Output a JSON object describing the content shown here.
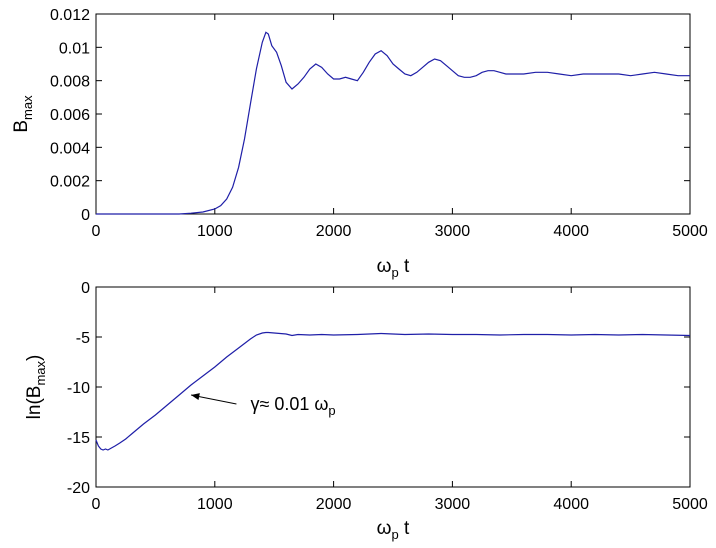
{
  "chart_data": [
    {
      "type": "line",
      "xlabel": "ω_p t",
      "ylabel": "B_max",
      "xlim": [
        0,
        5000
      ],
      "ylim": [
        0,
        0.012
      ],
      "xticks": [
        0,
        1000,
        2000,
        3000,
        4000,
        5000
      ],
      "xtick_labels": [
        "0",
        "1000",
        "2000",
        "3000",
        "4000",
        "5000"
      ],
      "yticks": [
        0,
        0.002,
        0.004,
        0.006,
        0.008,
        0.01,
        0.012
      ],
      "ytick_labels": [
        "0",
        "0.002",
        "0.004",
        "0.006",
        "0.008",
        "0.01",
        "0.012"
      ],
      "grid": false,
      "series": [
        {
          "color": "#1f1fa8",
          "x": [
            0,
            400,
            700,
            800,
            900,
            1000,
            1050,
            1100,
            1150,
            1200,
            1250,
            1300,
            1350,
            1400,
            1430,
            1450,
            1480,
            1520,
            1560,
            1600,
            1650,
            1700,
            1750,
            1800,
            1850,
            1900,
            1950,
            2000,
            2050,
            2100,
            2150,
            2200,
            2250,
            2300,
            2350,
            2400,
            2450,
            2500,
            2550,
            2600,
            2650,
            2700,
            2750,
            2800,
            2850,
            2900,
            2950,
            3000,
            3050,
            3100,
            3150,
            3200,
            3250,
            3300,
            3350,
            3400,
            3450,
            3500,
            3600,
            3700,
            3800,
            3900,
            4000,
            4100,
            4200,
            4300,
            4400,
            4500,
            4600,
            4700,
            4800,
            4900,
            5000
          ],
          "y": [
            0,
            0,
            0,
            5e-05,
            0.00012,
            0.0003,
            0.0005,
            0.0009,
            0.0016,
            0.0028,
            0.0045,
            0.0066,
            0.0087,
            0.0103,
            0.0109,
            0.0108,
            0.0101,
            0.0097,
            0.0089,
            0.0079,
            0.0075,
            0.0078,
            0.0082,
            0.0087,
            0.009,
            0.0088,
            0.0084,
            0.0081,
            0.0081,
            0.0082,
            0.0081,
            0.008,
            0.0085,
            0.0091,
            0.0096,
            0.0098,
            0.0095,
            0.009,
            0.0087,
            0.0084,
            0.0083,
            0.0085,
            0.0088,
            0.0091,
            0.0093,
            0.0092,
            0.0089,
            0.0086,
            0.0083,
            0.0082,
            0.0082,
            0.0083,
            0.0085,
            0.0086,
            0.0086,
            0.0085,
            0.0084,
            0.0084,
            0.0084,
            0.0085,
            0.0085,
            0.0084,
            0.0083,
            0.0084,
            0.0084,
            0.0084,
            0.0084,
            0.0083,
            0.0084,
            0.0085,
            0.0084,
            0.0083,
            0.0083
          ]
        }
      ]
    },
    {
      "type": "line",
      "xlabel": "ω_p t",
      "ylabel": "ln(B_max)",
      "xlim": [
        0,
        5000
      ],
      "ylim": [
        -20,
        0
      ],
      "xticks": [
        0,
        1000,
        2000,
        3000,
        4000,
        5000
      ],
      "xtick_labels": [
        "0",
        "1000",
        "2000",
        "3000",
        "4000",
        "5000"
      ],
      "yticks": [
        -20,
        -15,
        -10,
        -5,
        0
      ],
      "ytick_labels": [
        "-20",
        "-15",
        "-10",
        "-5",
        "0"
      ],
      "grid": false,
      "annotations": [
        {
          "text": "γ≈ 0.01 ω_p",
          "x": 1300,
          "y": -12.3,
          "arrow_to": [
            800,
            -10.8
          ]
        }
      ],
      "series": [
        {
          "color": "#1f1fa8",
          "x": [
            0,
            20,
            40,
            60,
            80,
            100,
            130,
            160,
            200,
            250,
            300,
            400,
            500,
            600,
            700,
            800,
            900,
            1000,
            1100,
            1200,
            1300,
            1350,
            1400,
            1430,
            1450,
            1500,
            1550,
            1600,
            1650,
            1700,
            1800,
            1900,
            2000,
            2200,
            2400,
            2600,
            2800,
            3000,
            3200,
            3400,
            3600,
            3800,
            4000,
            4200,
            4400,
            4600,
            4800,
            5000
          ],
          "y": [
            -15.3,
            -15.9,
            -16.2,
            -16.3,
            -16.2,
            -16.3,
            -16.1,
            -15.9,
            -15.6,
            -15.2,
            -14.7,
            -13.7,
            -12.8,
            -11.8,
            -10.8,
            -9.8,
            -8.9,
            -8.0,
            -7.0,
            -6.1,
            -5.2,
            -4.8,
            -4.6,
            -4.55,
            -4.55,
            -4.6,
            -4.65,
            -4.7,
            -4.85,
            -4.75,
            -4.8,
            -4.75,
            -4.8,
            -4.75,
            -4.65,
            -4.75,
            -4.7,
            -4.75,
            -4.75,
            -4.8,
            -4.75,
            -4.75,
            -4.8,
            -4.75,
            -4.8,
            -4.75,
            -4.8,
            -4.85
          ]
        }
      ]
    }
  ]
}
